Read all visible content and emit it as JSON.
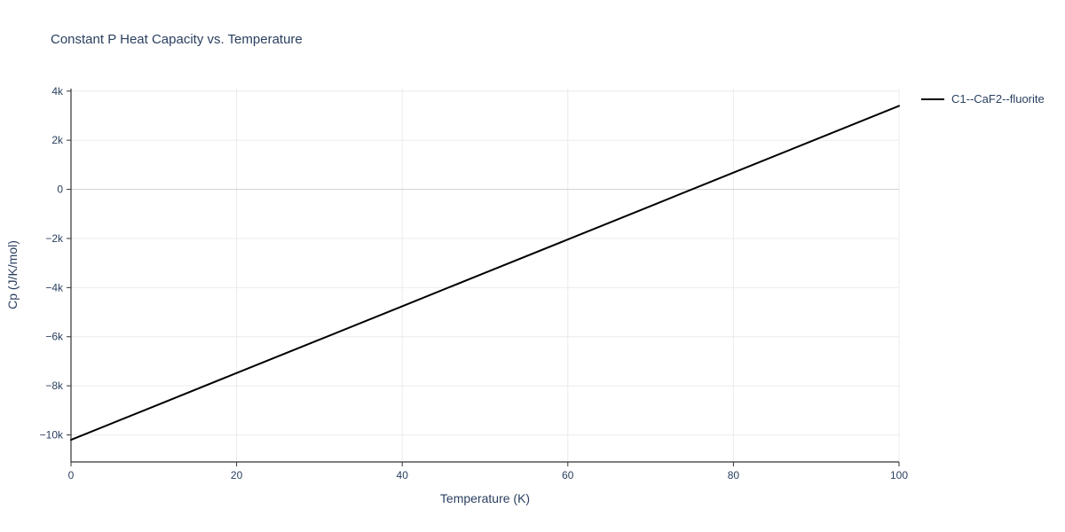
{
  "page": {
    "background": "#ffffff"
  },
  "chart_data": {
    "type": "line",
    "title": "Constant P Heat Capacity vs. Temperature",
    "xlabel": "Temperature (K)",
    "ylabel": "Cp (J/K/mol)",
    "xlim": [
      0,
      100
    ],
    "ylim": [
      -11100,
      4100
    ],
    "x_ticks": [
      0,
      20,
      40,
      60,
      80,
      100
    ],
    "x_tick_labels": [
      "0",
      "20",
      "40",
      "60",
      "80",
      "100"
    ],
    "y_ticks": [
      -10000,
      -8000,
      -6000,
      -4000,
      -2000,
      0,
      2000,
      4000
    ],
    "y_tick_labels": [
      "−10k",
      "−8k",
      "−6k",
      "−4k",
      "−2k",
      "0",
      "2k",
      "4k"
    ],
    "grid": true,
    "legend_position": "top-right",
    "series": [
      {
        "name": "C1--CaF2--fluorite",
        "color": "#000000",
        "width": 2,
        "x": [
          0,
          10,
          20,
          30,
          40,
          50,
          60,
          70,
          80,
          90,
          100
        ],
        "y": [
          -10200,
          -8840,
          -7480,
          -6120,
          -4760,
          -3400,
          -2040,
          -680,
          680,
          2040,
          3400
        ]
      }
    ],
    "colors": {
      "text": "#2a3f5f",
      "grid": "#ebebeb",
      "zero_line": "#d4d4d4",
      "axis": "#333333",
      "line": "#000000",
      "background": "#ffffff"
    }
  }
}
